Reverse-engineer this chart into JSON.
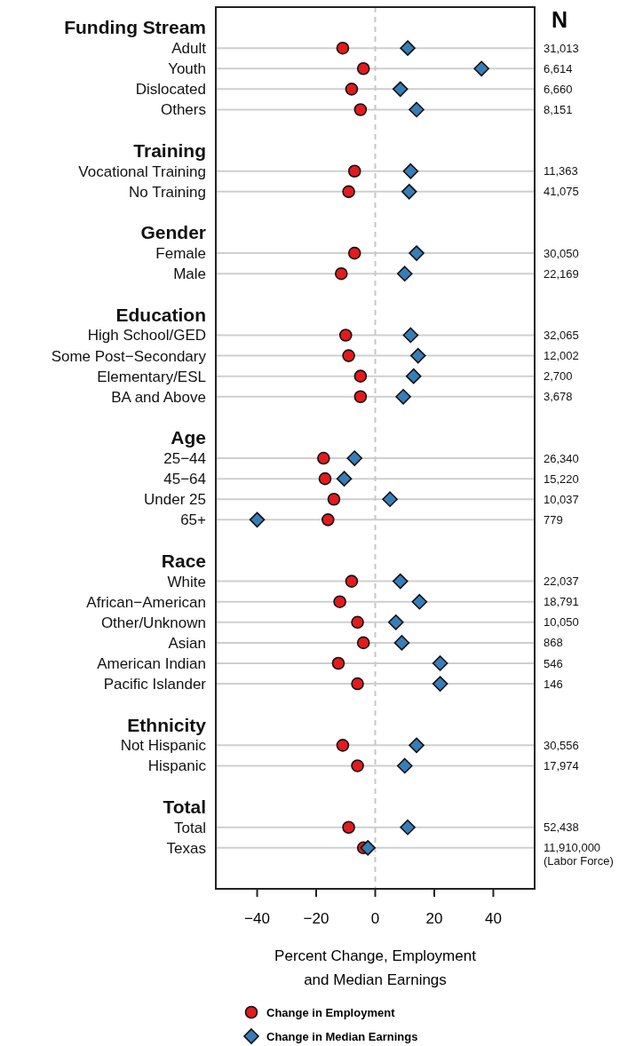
{
  "chart_data": {
    "type": "scatter",
    "orientation": "horizontal",
    "xlabel": "Percent Change, Employment\nand Median Earnings",
    "y2label": "N",
    "categories": [
      "Funding Stream",
      "Adult",
      "Youth",
      "Dislocated",
      "Others",
      null,
      "Training",
      "Vocational Training",
      "No Training",
      null,
      "Gender",
      "Female",
      "Male",
      null,
      "Education",
      "High School/GED",
      "Some Post−Secondary",
      "Elementary/ESL",
      "BA and Above",
      null,
      "Age",
      "25−44",
      "45−64",
      "Under 25",
      "65+",
      null,
      "Race",
      "White",
      "African−American",
      "Other/Unknown",
      "Asian",
      "American Indian",
      "Pacific Islander",
      null,
      "Ethnicity",
      "Not Hispanic",
      "Hispanic",
      null,
      "Total",
      "Total",
      "Texas"
    ],
    "y2_categories": [
      null,
      "31,013",
      "6,614",
      "6,660",
      "8,151",
      null,
      null,
      "11,363",
      "41,075",
      null,
      null,
      "30,050",
      "22,169",
      null,
      null,
      "32,065",
      "12,002",
      "2,700",
      "3,678",
      null,
      null,
      "26,340",
      "15,220",
      "10,037",
      "779",
      null,
      null,
      "22,037",
      "18,791",
      "10,050",
      "868",
      "546",
      "146",
      null,
      null,
      "30,556",
      "17,974",
      null,
      null,
      "52,438",
      "11,910,000\n(Labor Force)"
    ],
    "series": [
      {
        "name": "Change in Employment",
        "color": "#e41a1c",
        "marker": "circle",
        "values": [
          null,
          -11,
          -4,
          -8,
          -5,
          null,
          null,
          -7,
          -9,
          null,
          null,
          -7,
          -11.5,
          null,
          null,
          -10,
          -9,
          -5,
          -5,
          null,
          null,
          -17.5,
          -17,
          -14,
          -16,
          null,
          null,
          -8,
          -12,
          -6,
          -4,
          -12.5,
          -6,
          null,
          null,
          -11,
          -6,
          null,
          null,
          -9,
          -4
        ]
      },
      {
        "name": "Change in Median Earnings",
        "color": "#377eb8",
        "marker": "diamond",
        "values": [
          null,
          11,
          36,
          8.5,
          14,
          null,
          null,
          12,
          11.5,
          null,
          null,
          14,
          10,
          null,
          null,
          12,
          14.5,
          13,
          9.5,
          null,
          null,
          -7,
          -10.5,
          5,
          -40,
          null,
          null,
          8.5,
          15,
          7,
          9,
          22,
          22,
          null,
          null,
          14,
          10,
          null,
          null,
          11,
          -2.5
        ]
      }
    ],
    "xlim": [
      -54,
      54
    ],
    "xticks": [
      {
        "value": -40,
        "label": "−40"
      },
      {
        "value": -20,
        "label": "−20"
      },
      0,
      20,
      40
    ],
    "ref_lines": [
      {
        "axis": "x",
        "value": 0,
        "color": "#c8c8c8",
        "line_style": "dashed"
      }
    ],
    "grid": "y",
    "legend": "bottom"
  }
}
